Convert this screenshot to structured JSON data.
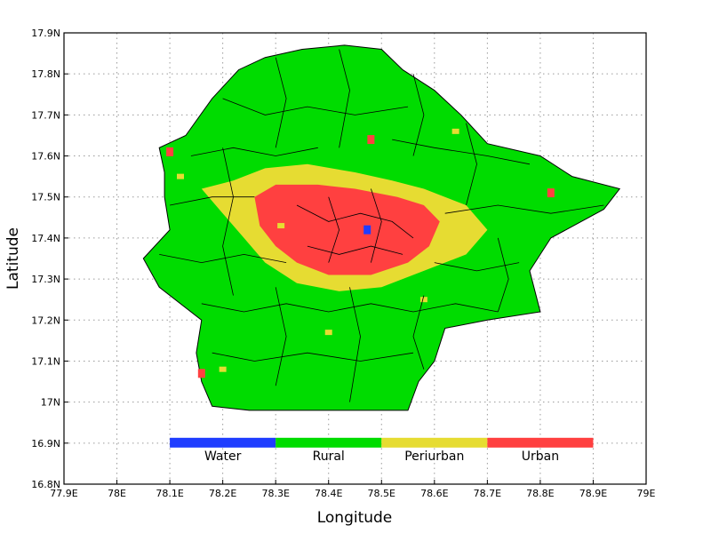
{
  "axes": {
    "xlabel": "Longitude",
    "ylabel": "Latitude",
    "xlim": [
      77.9,
      79.0
    ],
    "ylim": [
      16.8,
      17.9
    ],
    "xticks": [
      "77.9E",
      "78E",
      "78.1E",
      "78.2E",
      "78.3E",
      "78.4E",
      "78.5E",
      "78.6E",
      "78.7E",
      "78.8E",
      "78.9E",
      "79E"
    ],
    "yticks": [
      "16.8N",
      "16.9N",
      "17N",
      "17.1N",
      "17.2N",
      "17.3N",
      "17.4N",
      "17.5N",
      "17.6N",
      "17.7N",
      "17.8N",
      "17.9N"
    ],
    "grid": "dotted"
  },
  "legend": {
    "placement": "bottom-center",
    "items": [
      {
        "label": "Water",
        "color": "#1f3dff"
      },
      {
        "label": "Rural",
        "color": "#00dc00"
      },
      {
        "label": "Periurban",
        "color": "#e6dc32"
      },
      {
        "label": "Urban",
        "color": "#ff4040"
      }
    ]
  },
  "classes": {
    "water": "#1f3dff",
    "rural": "#00dc00",
    "periurban": "#e6dc32",
    "urban": "#ff4040"
  },
  "map": {
    "region_outline_lonlat": [
      [
        78.1,
        17.42
      ],
      [
        78.09,
        17.5
      ],
      [
        78.09,
        17.56
      ],
      [
        78.08,
        17.62
      ],
      [
        78.13,
        17.65
      ],
      [
        78.18,
        17.74
      ],
      [
        78.23,
        17.81
      ],
      [
        78.28,
        17.84
      ],
      [
        78.35,
        17.86
      ],
      [
        78.43,
        17.87
      ],
      [
        78.5,
        17.86
      ],
      [
        78.54,
        17.81
      ],
      [
        78.6,
        17.76
      ],
      [
        78.65,
        17.7
      ],
      [
        78.7,
        17.63
      ],
      [
        78.8,
        17.6
      ],
      [
        78.86,
        17.55
      ],
      [
        78.95,
        17.52
      ],
      [
        78.92,
        17.47
      ],
      [
        78.82,
        17.4
      ],
      [
        78.78,
        17.32
      ],
      [
        78.8,
        17.22
      ],
      [
        78.7,
        17.2
      ],
      [
        78.62,
        17.18
      ],
      [
        78.6,
        17.1
      ],
      [
        78.57,
        17.05
      ],
      [
        78.55,
        16.98
      ],
      [
        78.45,
        16.98
      ],
      [
        78.35,
        16.98
      ],
      [
        78.25,
        16.98
      ],
      [
        78.18,
        16.99
      ],
      [
        78.16,
        17.05
      ],
      [
        78.15,
        17.12
      ],
      [
        78.16,
        17.2
      ],
      [
        78.08,
        17.28
      ],
      [
        78.05,
        17.35
      ],
      [
        78.1,
        17.42
      ]
    ],
    "periurban_lonlat": [
      [
        78.16,
        17.52
      ],
      [
        78.22,
        17.54
      ],
      [
        78.28,
        17.57
      ],
      [
        78.36,
        17.58
      ],
      [
        78.45,
        17.56
      ],
      [
        78.52,
        17.54
      ],
      [
        78.58,
        17.52
      ],
      [
        78.66,
        17.48
      ],
      [
        78.7,
        17.42
      ],
      [
        78.66,
        17.36
      ],
      [
        78.58,
        17.32
      ],
      [
        78.5,
        17.28
      ],
      [
        78.42,
        17.27
      ],
      [
        78.34,
        17.29
      ],
      [
        78.28,
        17.34
      ],
      [
        78.24,
        17.4
      ],
      [
        78.2,
        17.46
      ],
      [
        78.16,
        17.52
      ]
    ],
    "urban_lonlat": [
      [
        78.26,
        17.5
      ],
      [
        78.3,
        17.53
      ],
      [
        78.38,
        17.53
      ],
      [
        78.45,
        17.52
      ],
      [
        78.53,
        17.5
      ],
      [
        78.58,
        17.48
      ],
      [
        78.61,
        17.44
      ],
      [
        78.59,
        17.38
      ],
      [
        78.55,
        17.34
      ],
      [
        78.48,
        17.31
      ],
      [
        78.4,
        17.31
      ],
      [
        78.34,
        17.34
      ],
      [
        78.3,
        17.38
      ],
      [
        78.27,
        17.43
      ],
      [
        78.26,
        17.5
      ]
    ],
    "water_point_lonlat": [
      78.473,
      17.42
    ],
    "urban_spots_lonlat": [
      [
        78.1,
        17.61
      ],
      [
        78.82,
        17.51
      ],
      [
        78.16,
        17.07
      ],
      [
        78.48,
        17.64
      ]
    ],
    "periurban_spots_lonlat": [
      [
        78.12,
        17.55
      ],
      [
        78.64,
        17.66
      ],
      [
        78.4,
        17.17
      ],
      [
        78.2,
        17.08
      ],
      [
        78.31,
        17.43
      ],
      [
        78.61,
        17.46
      ],
      [
        78.58,
        17.25
      ]
    ]
  }
}
